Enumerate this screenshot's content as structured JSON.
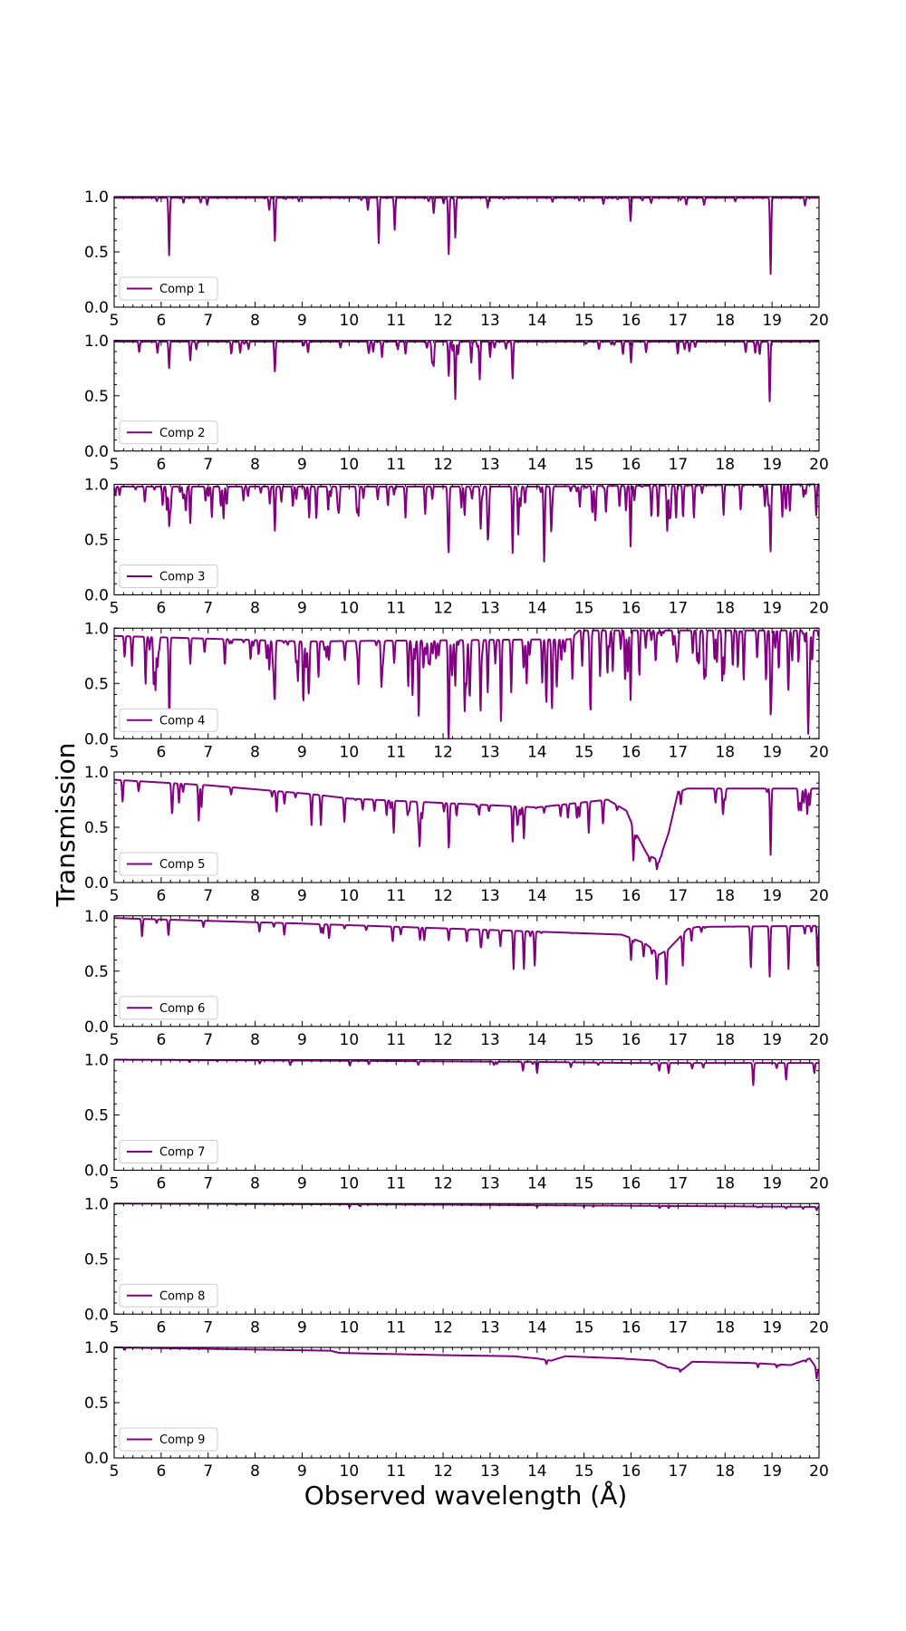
{
  "figure": {
    "ylabel": "Transmission",
    "xlabel": "Observed wavelength (Å)",
    "line_color": "#800080"
  },
  "chart_data": {
    "type": "line",
    "layout": "9 vertically stacked panels sharing x axis range",
    "xlim": [
      5,
      20
    ],
    "ylim": [
      0,
      1
    ],
    "x_ticks": [
      5,
      6,
      7,
      8,
      9,
      10,
      11,
      12,
      13,
      14,
      15,
      16,
      17,
      18,
      19,
      20
    ],
    "y_ticks": [
      0.0,
      0.5,
      1.0
    ],
    "y_tick_labels": [
      "0.0",
      "0.5",
      "1.0"
    ],
    "legend_position": "lower-left",
    "grid": false,
    "panels": [
      {
        "name": "Comp 1",
        "continuum": [
          [
            5,
            0.99
          ],
          [
            20,
            0.99
          ]
        ],
        "noise": 0.012,
        "dense": 0.15,
        "lines": [
          [
            6.17,
            0.47
          ],
          [
            8.42,
            0.6
          ],
          [
            10.63,
            0.58
          ],
          [
            10.97,
            0.7
          ],
          [
            12.12,
            0.48
          ],
          [
            12.26,
            0.63
          ],
          [
            15.99,
            0.78
          ],
          [
            18.97,
            0.3
          ],
          [
            11.8,
            0.85
          ],
          [
            12.95,
            0.9
          ],
          [
            8.3,
            0.88
          ],
          [
            10.4,
            0.88
          ]
        ]
      },
      {
        "name": "Comp 2",
        "continuum": [
          [
            5,
            0.99
          ],
          [
            20,
            0.99
          ]
        ],
        "noise": 0.02,
        "dense": 0.25,
        "lines": [
          [
            6.17,
            0.75
          ],
          [
            6.62,
            0.82
          ],
          [
            8.42,
            0.72
          ],
          [
            11.8,
            0.78
          ],
          [
            12.12,
            0.68
          ],
          [
            12.26,
            0.47
          ],
          [
            12.6,
            0.8
          ],
          [
            12.78,
            0.65
          ],
          [
            13.48,
            0.68
          ],
          [
            16.0,
            0.8
          ],
          [
            18.95,
            0.45
          ],
          [
            10.7,
            0.85
          ],
          [
            11.2,
            0.88
          ],
          [
            13.0,
            0.85
          ]
        ]
      },
      {
        "name": "Comp 3",
        "continuum": [
          [
            5,
            0.98
          ],
          [
            14,
            0.98
          ],
          [
            20,
            1.0
          ]
        ],
        "noise": 0.05,
        "dense": 0.6,
        "lines": [
          [
            6.17,
            0.7
          ],
          [
            6.62,
            0.65
          ],
          [
            8.42,
            0.58
          ],
          [
            9.15,
            0.7
          ],
          [
            10.2,
            0.72
          ],
          [
            11.2,
            0.7
          ],
          [
            12.12,
            0.45
          ],
          [
            12.8,
            0.6
          ],
          [
            12.95,
            0.55
          ],
          [
            13.48,
            0.38
          ],
          [
            13.6,
            0.55
          ],
          [
            14.15,
            0.48
          ],
          [
            14.3,
            0.6
          ],
          [
            15.99,
            0.63
          ],
          [
            18.97,
            0.45
          ],
          [
            19.3,
            0.95
          ]
        ]
      },
      {
        "name": "Comp 4",
        "continuum": [
          [
            5,
            0.93
          ],
          [
            9,
            0.88
          ],
          [
            14.7,
            0.9
          ],
          [
            14.9,
            0.98
          ],
          [
            20,
            0.98
          ]
        ],
        "noise": 0.08,
        "dense": 0.9,
        "lines": [
          [
            6.17,
            0.47
          ],
          [
            6.62,
            0.68
          ],
          [
            8.42,
            0.43
          ],
          [
            9.15,
            0.58
          ],
          [
            10.2,
            0.5
          ],
          [
            11.35,
            0.42
          ],
          [
            12.12,
            0.3
          ],
          [
            12.8,
            0.4
          ],
          [
            12.95,
            0.42
          ],
          [
            13.45,
            0.42
          ],
          [
            14.2,
            0.42
          ],
          [
            15.99,
            0.35
          ],
          [
            16.9,
            0.85
          ],
          [
            18.97,
            0.28
          ],
          [
            19.7,
            0.88
          ]
        ]
      },
      {
        "name": "Comp 5",
        "continuum": [
          [
            5,
            0.93
          ],
          [
            7,
            0.88
          ],
          [
            9.2,
            0.8
          ],
          [
            10,
            0.76
          ],
          [
            12,
            0.72
          ],
          [
            13,
            0.7
          ],
          [
            14,
            0.68
          ],
          [
            15.5,
            0.75
          ],
          [
            15.9,
            0.65
          ],
          [
            16.1,
            0.45
          ],
          [
            16.35,
            0.25
          ],
          [
            16.6,
            0.2
          ],
          [
            16.8,
            0.45
          ],
          [
            17.0,
            0.82
          ],
          [
            17.2,
            0.85
          ],
          [
            20,
            0.85
          ]
        ],
        "noise": 0.04,
        "dense": 0.35,
        "lines": [
          [
            6.8,
            0.56
          ],
          [
            9.2,
            0.52
          ],
          [
            9.4,
            0.52
          ],
          [
            9.9,
            0.55
          ],
          [
            10.95,
            0.45
          ],
          [
            11.5,
            0.47
          ],
          [
            12.12,
            0.36
          ],
          [
            13.48,
            0.37
          ],
          [
            13.72,
            0.4
          ],
          [
            14.5,
            0.6
          ],
          [
            15.1,
            0.45
          ],
          [
            15.4,
            0.6
          ],
          [
            16.05,
            0.2
          ],
          [
            16.55,
            0.12
          ],
          [
            18.97,
            0.25
          ],
          [
            19.75,
            0.62
          ]
        ]
      },
      {
        "name": "Comp 6",
        "continuum": [
          [
            5,
            0.98
          ],
          [
            9,
            0.93
          ],
          [
            12.5,
            0.88
          ],
          [
            15.8,
            0.83
          ],
          [
            16.0,
            0.8
          ],
          [
            16.3,
            0.75
          ],
          [
            16.6,
            0.65
          ],
          [
            16.8,
            0.7
          ],
          [
            17.2,
            0.88
          ],
          [
            17.4,
            0.9
          ],
          [
            20,
            0.91
          ]
        ],
        "noise": 0.03,
        "dense": 0.2,
        "lines": [
          [
            6.9,
            0.9
          ],
          [
            9.4,
            0.85
          ],
          [
            11.6,
            0.78
          ],
          [
            12.12,
            0.78
          ],
          [
            13.5,
            0.52
          ],
          [
            13.72,
            0.52
          ],
          [
            13.95,
            0.55
          ],
          [
            16.0,
            0.6
          ],
          [
            16.55,
            0.43
          ],
          [
            16.75,
            0.38
          ],
          [
            17.1,
            0.55
          ],
          [
            18.55,
            0.55
          ],
          [
            18.95,
            0.45
          ],
          [
            19.35,
            0.52
          ],
          [
            19.97,
            0.55
          ]
        ]
      },
      {
        "name": "Comp 7",
        "continuum": [
          [
            5,
            1.0
          ],
          [
            10,
            0.99
          ],
          [
            14,
            0.98
          ],
          [
            16,
            0.97
          ],
          [
            20,
            0.97
          ]
        ],
        "noise": 0.008,
        "dense": 0.1,
        "lines": [
          [
            13.7,
            0.9
          ],
          [
            14.0,
            0.88
          ],
          [
            16.6,
            0.9
          ],
          [
            16.8,
            0.88
          ],
          [
            18.6,
            0.77
          ],
          [
            19.3,
            0.82
          ],
          [
            19.9,
            0.88
          ],
          [
            17.3,
            0.92
          ]
        ]
      },
      {
        "name": "Comp 8",
        "continuum": [
          [
            5,
            1.0
          ],
          [
            12,
            0.99
          ],
          [
            16,
            0.98
          ],
          [
            20,
            0.97
          ]
        ],
        "noise": 0.004,
        "dense": 0.05,
        "lines": [
          [
            14.0,
            0.97
          ],
          [
            16.8,
            0.96
          ],
          [
            18.7,
            0.965
          ],
          [
            19.3,
            0.955
          ],
          [
            19.95,
            0.94
          ]
        ]
      },
      {
        "name": "Comp 9",
        "continuum": [
          [
            5,
            1.0
          ],
          [
            9.6,
            0.97
          ],
          [
            9.8,
            0.95
          ],
          [
            12,
            0.93
          ],
          [
            13.5,
            0.92
          ],
          [
            14.0,
            0.9
          ],
          [
            14.3,
            0.88
          ],
          [
            14.6,
            0.92
          ],
          [
            15.8,
            0.9
          ],
          [
            16.5,
            0.88
          ],
          [
            16.8,
            0.82
          ],
          [
            17.1,
            0.8
          ],
          [
            17.3,
            0.87
          ],
          [
            18.5,
            0.86
          ],
          [
            19.4,
            0.84
          ],
          [
            19.8,
            0.9
          ],
          [
            20,
            0.78
          ]
        ],
        "noise": 0.006,
        "dense": 0.05,
        "lines": [
          [
            14.2,
            0.85
          ],
          [
            17.05,
            0.78
          ],
          [
            19.95,
            0.72
          ],
          [
            19.1,
            0.82
          ],
          [
            18.7,
            0.82
          ]
        ]
      }
    ]
  }
}
